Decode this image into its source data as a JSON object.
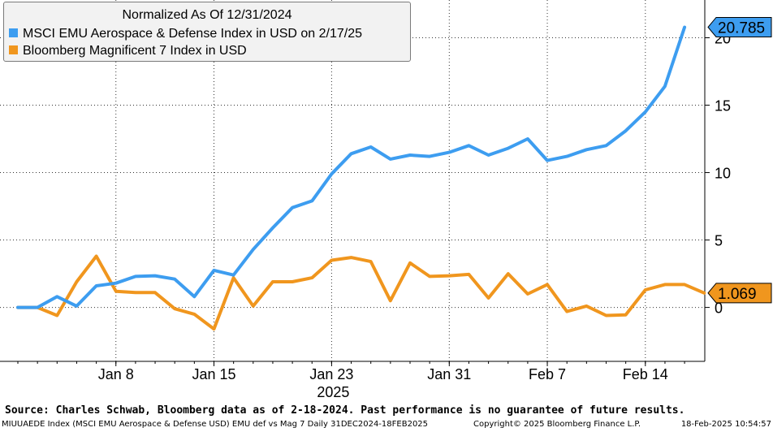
{
  "chart_data": {
    "type": "line",
    "x_dates": [
      "2024-12-31",
      "2025-01-02",
      "2025-01-03",
      "2025-01-06",
      "2025-01-07",
      "2025-01-08",
      "2025-01-09",
      "2025-01-10",
      "2025-01-13",
      "2025-01-14",
      "2025-01-15",
      "2025-01-16",
      "2025-01-17",
      "2025-01-20",
      "2025-01-21",
      "2025-01-22",
      "2025-01-23",
      "2025-01-24",
      "2025-01-27",
      "2025-01-28",
      "2025-01-29",
      "2025-01-30",
      "2025-01-31",
      "2025-02-03",
      "2025-02-04",
      "2025-02-05",
      "2025-02-06",
      "2025-02-07",
      "2025-02-10",
      "2025-02-11",
      "2025-02-12",
      "2025-02-13",
      "2025-02-14",
      "2025-02-17",
      "2025-02-18"
    ],
    "x_ticks": [
      {
        "label": "Jan 8",
        "date": "2025-01-08"
      },
      {
        "label": "Jan 15",
        "date": "2025-01-15"
      },
      {
        "label": "Jan 23",
        "date": "2025-01-23"
      },
      {
        "label": "Jan 31",
        "date": "2025-01-31"
      },
      {
        "label": "Feb 7",
        "date": "2025-02-07"
      },
      {
        "label": "Feb 14",
        "date": "2025-02-14"
      }
    ],
    "year_label": "2025",
    "y_ticks": [
      0,
      5,
      10,
      15,
      20
    ],
    "ylim": [
      -4,
      22.8
    ],
    "grid": true,
    "legend": {
      "position": "top-left",
      "title": "Normalized As Of 12/31/2024"
    },
    "series": [
      {
        "name": "MSCI EMU Aerospace & Defense Index in USD on 2/17/25",
        "color": "#3d9df0",
        "last_value_label": "20.785",
        "points": [
          [
            "2024-12-31",
            0
          ],
          [
            "2025-01-02",
            0.0
          ],
          [
            "2025-01-03",
            0.8
          ],
          [
            "2025-01-06",
            0.1
          ],
          [
            "2025-01-07",
            1.6
          ],
          [
            "2025-01-08",
            1.8
          ],
          [
            "2025-01-09",
            2.3
          ],
          [
            "2025-01-10",
            2.35
          ],
          [
            "2025-01-13",
            2.1
          ],
          [
            "2025-01-14",
            0.8
          ],
          [
            "2025-01-15",
            2.75
          ],
          [
            "2025-01-16",
            2.4
          ],
          [
            "2025-01-17",
            4.3
          ],
          [
            "2025-01-20",
            5.9
          ],
          [
            "2025-01-21",
            7.4
          ],
          [
            "2025-01-22",
            7.9
          ],
          [
            "2025-01-23",
            9.9
          ],
          [
            "2025-01-24",
            11.4
          ],
          [
            "2025-01-27",
            11.9
          ],
          [
            "2025-01-28",
            11.0
          ],
          [
            "2025-01-29",
            11.3
          ],
          [
            "2025-01-30",
            11.2
          ],
          [
            "2025-01-31",
            11.5
          ],
          [
            "2025-02-03",
            12.0
          ],
          [
            "2025-02-04",
            11.3
          ],
          [
            "2025-02-05",
            11.8
          ],
          [
            "2025-02-06",
            12.5
          ],
          [
            "2025-02-07",
            10.9
          ],
          [
            "2025-02-10",
            11.2
          ],
          [
            "2025-02-11",
            11.7
          ],
          [
            "2025-02-12",
            12.0
          ],
          [
            "2025-02-13",
            13.1
          ],
          [
            "2025-02-14",
            14.5
          ],
          [
            "2025-02-14b",
            16.4
          ],
          [
            "2025-02-17",
            20.785
          ]
        ]
      },
      {
        "name": "Bloomberg Magnificent 7 Index in USD",
        "color": "#f0961e",
        "last_value_label": "1.069",
        "points": [
          [
            "2024-12-31",
            0
          ],
          [
            "2025-01-02",
            0.0
          ],
          [
            "2025-01-03",
            -0.6
          ],
          [
            "2025-01-06",
            1.9
          ],
          [
            "2025-01-07",
            3.8
          ],
          [
            "2025-01-08",
            1.2
          ],
          [
            "2025-01-09",
            1.1
          ],
          [
            "2025-01-10",
            1.1
          ],
          [
            "2025-01-13",
            -0.1
          ],
          [
            "2025-01-14",
            -0.5
          ],
          [
            "2025-01-15",
            -1.6
          ],
          [
            "2025-01-16",
            2.2
          ],
          [
            "2025-01-17",
            0.1
          ],
          [
            "2025-01-20",
            1.9
          ],
          [
            "2025-01-21",
            1.9
          ],
          [
            "2025-01-22",
            2.2
          ],
          [
            "2025-01-23",
            3.5
          ],
          [
            "2025-01-24",
            3.7
          ],
          [
            "2025-01-27",
            3.4
          ],
          [
            "2025-01-28",
            0.5
          ],
          [
            "2025-01-29",
            3.3
          ],
          [
            "2025-01-30",
            2.3
          ],
          [
            "2025-01-31",
            2.35
          ],
          [
            "2025-02-03",
            2.45
          ],
          [
            "2025-02-04",
            0.7
          ],
          [
            "2025-02-05",
            2.5
          ],
          [
            "2025-02-06",
            1.0
          ],
          [
            "2025-02-07",
            1.7
          ],
          [
            "2025-02-10",
            -0.3
          ],
          [
            "2025-02-11",
            0.1
          ],
          [
            "2025-02-12",
            -0.6
          ],
          [
            "2025-02-13",
            -0.55
          ],
          [
            "2025-02-14",
            1.3
          ],
          [
            "2025-02-14b",
            1.7
          ],
          [
            "2025-02-17",
            1.7
          ],
          [
            "2025-02-18",
            1.069
          ]
        ]
      }
    ]
  },
  "footer": {
    "source": "Source: Charles Schwab, Bloomberg data as of 2-18-2024.  Past performance is no guarantee of future results.",
    "left": "MIUUAEDE Index (MSCI EMU Aerospace & Defense USD) EMU def vs Mag 7  Daily 31DEC2024-18FEB2025",
    "center": "Copyright© 2025 Bloomberg Finance L.P.",
    "right": "18-Feb-2025 10:54:57"
  }
}
